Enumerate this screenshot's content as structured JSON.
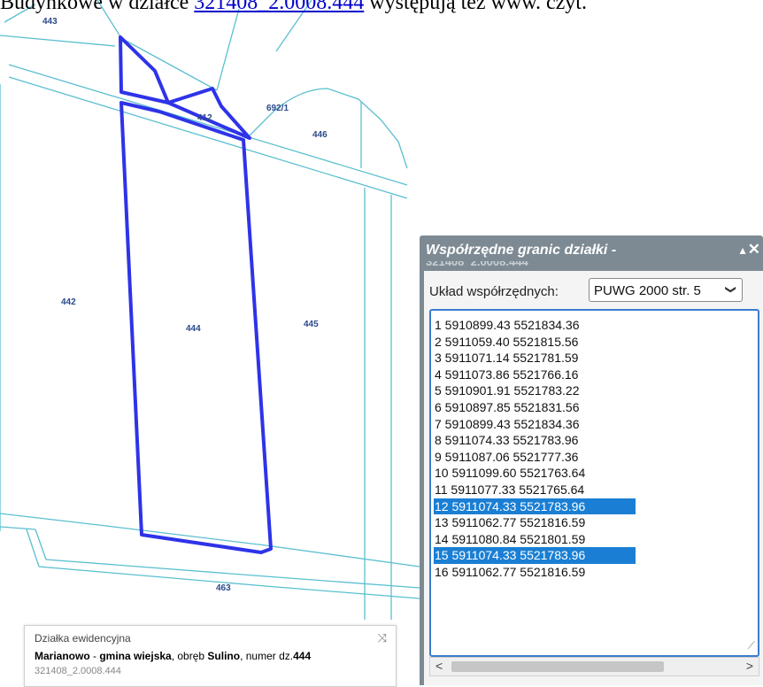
{
  "top_text": {
    "prefix": "Budynkowe w działce ",
    "link": "321408_2.0008.444",
    "suffix": " występują też www. czyt."
  },
  "map": {
    "parcel_labels": {
      "p443": "443",
      "p412": "412",
      "p692": "692/1",
      "p446": "446",
      "p442": "442",
      "p444": "444",
      "p445": "445",
      "p463": "463"
    },
    "colors": {
      "parcel_lines": "#5bbfd0",
      "selected_outline": "#2e33e8"
    }
  },
  "info_popup": {
    "title": "Działka ewidencyjna",
    "locality": "Marianowo",
    "sep1": " - ",
    "gmina": "gmina wiejska",
    "sep2": ", obręb ",
    "obreb": "Sulino",
    "sep3": ", numer dz.",
    "number": "444",
    "id": "321408_2.0008.444"
  },
  "panel": {
    "title": "Współrzędne granic działki -",
    "title_cont": "321408_2.0008.444",
    "crs_label": "Układ współrzędnych:",
    "crs_value": "PUWG 2000 str. 5",
    "coordinates": [
      {
        "text": "1 5910899.43 5521834.36",
        "selected": false
      },
      {
        "text": "2 5911059.40 5521815.56",
        "selected": false
      },
      {
        "text": "3 5911071.14 5521781.59",
        "selected": false
      },
      {
        "text": "4 5911073.86 5521766.16",
        "selected": false
      },
      {
        "text": "5 5910901.91 5521783.22",
        "selected": false
      },
      {
        "text": "6 5910897.85 5521831.56",
        "selected": false
      },
      {
        "text": "7 5910899.43 5521834.36",
        "selected": false
      },
      {
        "text": "8 5911074.33 5521783.96",
        "selected": false
      },
      {
        "text": "9 5911087.06 5521777.36",
        "selected": false
      },
      {
        "text": "10 5911099.60 5521763.64",
        "selected": false
      },
      {
        "text": "11 5911077.33 5521765.64",
        "selected": false
      },
      {
        "text": "12 5911074.33 5521783.96",
        "selected": true
      },
      {
        "text": "13 5911062.77 5521816.59",
        "selected": false
      },
      {
        "text": "14 5911080.84 5521801.59",
        "selected": false
      },
      {
        "text": "15 5911074.33 5521783.96",
        "selected": true
      },
      {
        "text": "16 5911062.77 5521816.59",
        "selected": false
      }
    ]
  }
}
